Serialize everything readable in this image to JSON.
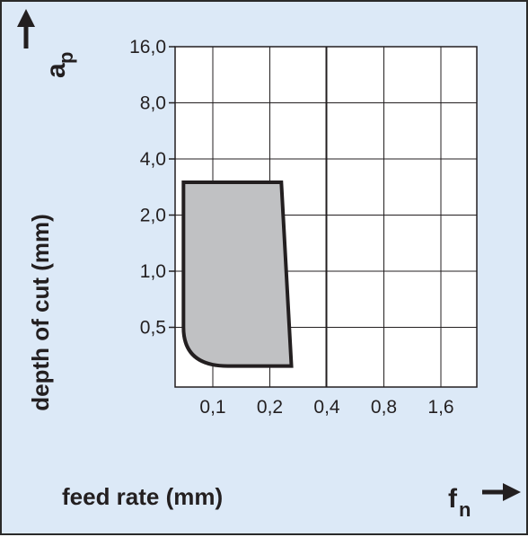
{
  "chart_data": {
    "type": "area",
    "y_axis": {
      "symbol": "a",
      "symbol_subscript": "p",
      "label": "depth of cut (mm)",
      "scale": "log",
      "tick_labels": [
        "0,5",
        "1,0",
        "2,0",
        "4,0",
        "8,0",
        "16,0"
      ],
      "tick_values": [
        0.5,
        1.0,
        2.0,
        4.0,
        8.0,
        16.0
      ],
      "range": [
        0.25,
        16.0
      ]
    },
    "x_axis": {
      "symbol": "f",
      "symbol_subscript": "n",
      "label": "feed rate (mm)",
      "scale": "log",
      "tick_labels": [
        "0,1",
        "0,2",
        "0,4",
        "0,8",
        "1,6"
      ],
      "tick_values": [
        0.1,
        0.2,
        0.4,
        0.8,
        1.6
      ],
      "range": [
        0.05,
        2.2
      ]
    },
    "grid": true,
    "region": {
      "name": "",
      "fill": "#c0c1c3",
      "stroke": "#231f20",
      "polygon": [
        [
          0.07,
          3.0
        ],
        [
          0.23,
          3.0
        ],
        [
          0.26,
          0.31
        ],
        [
          0.12,
          0.31
        ],
        [
          0.07,
          0.5
        ]
      ]
    },
    "colors": {
      "background": "#dce9f7",
      "plot_background": "#ffffff",
      "grid": "#231f20"
    }
  }
}
